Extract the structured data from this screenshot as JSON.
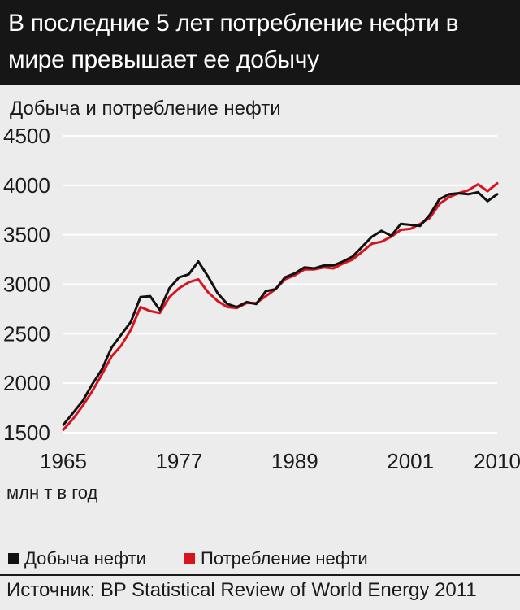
{
  "header": {
    "title": "В последние 5 лет потребление нефти в мире превышает ее добычу"
  },
  "colors": {
    "header_bg": "#161616",
    "production": "#111111",
    "consumption": "#d7141e",
    "grid": "#ffffff",
    "background": "#ececec"
  },
  "chart_data": {
    "type": "line",
    "title": "В последние 5 лет потребление нефти в мире превышает ее добычу",
    "subtitle": "Добыча и потребление нефти",
    "ylabel": "млн т в год",
    "xlabel": "",
    "xlim": [
      1965,
      2010
    ],
    "ylim": [
      1500,
      4500
    ],
    "x_ticks": [
      "1965",
      "1977",
      "1989",
      "2001",
      "2010"
    ],
    "y_ticks": [
      "1500",
      "2000",
      "2500",
      "3000",
      "3500",
      "4000",
      "4500"
    ],
    "grid": "horizontal",
    "legend_position": "bottom",
    "x": [
      1965,
      1966,
      1967,
      1968,
      1969,
      1970,
      1971,
      1972,
      1973,
      1974,
      1975,
      1976,
      1977,
      1978,
      1979,
      1980,
      1981,
      1982,
      1983,
      1984,
      1985,
      1986,
      1987,
      1988,
      1989,
      1990,
      1991,
      1992,
      1993,
      1994,
      1995,
      1996,
      1997,
      1998,
      1999,
      2000,
      2001,
      2002,
      2003,
      2004,
      2005,
      2006,
      2007,
      2008,
      2009,
      2010
    ],
    "series": [
      {
        "name": "Добыча нефти",
        "color": "#111111",
        "values": [
          1580,
          1700,
          1820,
          1990,
          2140,
          2360,
          2490,
          2620,
          2870,
          2880,
          2740,
          2960,
          3070,
          3100,
          3230,
          3080,
          2910,
          2800,
          2770,
          2820,
          2800,
          2930,
          2950,
          3070,
          3110,
          3170,
          3160,
          3190,
          3190,
          3230,
          3280,
          3380,
          3480,
          3540,
          3490,
          3610,
          3600,
          3590,
          3700,
          3860,
          3910,
          3920,
          3910,
          3930,
          3840,
          3910
        ]
      },
      {
        "name": "Потребление нефти",
        "color": "#d7141e",
        "values": [
          1530,
          1640,
          1770,
          1920,
          2090,
          2270,
          2380,
          2540,
          2770,
          2730,
          2710,
          2870,
          2960,
          3020,
          3050,
          2920,
          2830,
          2770,
          2760,
          2810,
          2810,
          2880,
          2950,
          3050,
          3090,
          3150,
          3150,
          3170,
          3160,
          3210,
          3250,
          3330,
          3410,
          3430,
          3480,
          3550,
          3560,
          3610,
          3670,
          3810,
          3880,
          3920,
          3950,
          4010,
          3940,
          4020
        ]
      }
    ]
  },
  "legend": {
    "production": "Добыча нефти",
    "consumption": "Потребление нефти"
  },
  "source": "Источник: BP Statistical Review of World Energy 2011"
}
